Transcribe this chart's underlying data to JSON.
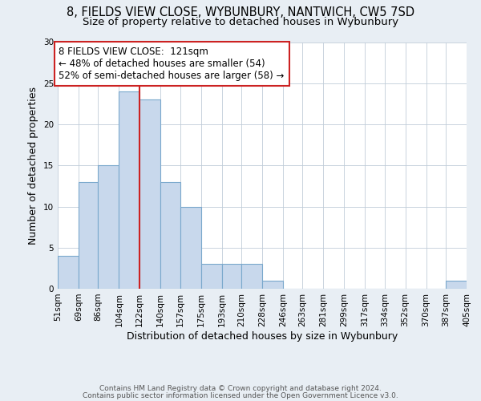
{
  "title": "8, FIELDS VIEW CLOSE, WYBUNBURY, NANTWICH, CW5 7SD",
  "subtitle": "Size of property relative to detached houses in Wybunbury",
  "xlabel": "Distribution of detached houses by size in Wybunbury",
  "ylabel": "Number of detached properties",
  "bin_edges": [
    51,
    69,
    86,
    104,
    122,
    140,
    157,
    175,
    193,
    210,
    228,
    246,
    263,
    281,
    299,
    317,
    334,
    352,
    370,
    387,
    405
  ],
  "bin_counts": [
    4,
    13,
    15,
    24,
    23,
    13,
    10,
    3,
    3,
    3,
    1,
    0,
    0,
    0,
    0,
    0,
    0,
    0,
    0,
    1
  ],
  "bar_color": "#c8d8ec",
  "bar_edge_color": "#7aa8cc",
  "vline_x": 122,
  "vline_color": "#cc2222",
  "annotation_box_text": "8 FIELDS VIEW CLOSE:  121sqm\n← 48% of detached houses are smaller (54)\n52% of semi-detached houses are larger (58) →",
  "annotation_box_color": "#ffffff",
  "annotation_box_edge_color": "#cc2222",
  "ylim": [
    0,
    30
  ],
  "yticks": [
    0,
    5,
    10,
    15,
    20,
    25,
    30
  ],
  "tick_labels": [
    "51sqm",
    "69sqm",
    "86sqm",
    "104sqm",
    "122sqm",
    "140sqm",
    "157sqm",
    "175sqm",
    "193sqm",
    "210sqm",
    "228sqm",
    "246sqm",
    "263sqm",
    "281sqm",
    "299sqm",
    "317sqm",
    "334sqm",
    "352sqm",
    "370sqm",
    "387sqm",
    "405sqm"
  ],
  "footer_line1": "Contains HM Land Registry data © Crown copyright and database right 2024.",
  "footer_line2": "Contains public sector information licensed under the Open Government Licence v3.0.",
  "background_color": "#e8eef4",
  "plot_background_color": "#ffffff",
  "title_fontsize": 10.5,
  "subtitle_fontsize": 9.5,
  "axis_label_fontsize": 9,
  "tick_fontsize": 7.5,
  "footer_fontsize": 6.5,
  "annot_fontsize": 8.5
}
